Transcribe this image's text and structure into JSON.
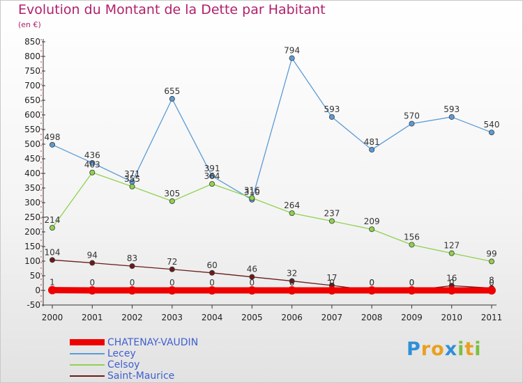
{
  "title": "Evolution du Montant de la Dette par Habitant",
  "subtitle": "(en €)",
  "logo": {
    "letters": [
      "P",
      "r",
      "o",
      "x",
      "i",
      "t",
      "i"
    ],
    "colors": [
      "#2f8fd8",
      "#e8a020",
      "#e8a020",
      "#2f8fd8",
      "#7ac043",
      "#e8a020",
      "#7ac043"
    ]
  },
  "chart_data": {
    "type": "line",
    "title": "Evolution du Montant de la Dette par Habitant",
    "ylabel": "(en €)",
    "xlabel": "",
    "x": [
      "2000",
      "2001",
      "2002",
      "2003",
      "2004",
      "2005",
      "2006",
      "2007",
      "2008",
      "2009",
      "2010",
      "2011"
    ],
    "ylim": [
      -50,
      850
    ],
    "yticks": [
      -50,
      0,
      50,
      100,
      150,
      200,
      250,
      300,
      350,
      400,
      450,
      500,
      550,
      600,
      650,
      700,
      750,
      800,
      850
    ],
    "grid": false,
    "legend_position": "bottom-left",
    "series": [
      {
        "name": "CHATENAY-VAUDIN",
        "color": "#ee0000",
        "values": [
          1,
          0,
          0,
          0,
          0,
          0,
          0,
          0,
          0,
          0,
          0,
          0
        ],
        "labels": [
          "1",
          "0",
          "0",
          "0",
          "0",
          "0",
          "0",
          "0",
          "0",
          "0",
          "0",
          "0"
        ]
      },
      {
        "name": "Lecey",
        "color": "#5b9bd5",
        "values": [
          498,
          436,
          371,
          655,
          391,
          310,
          794,
          593,
          481,
          570,
          593,
          540
        ],
        "labels": [
          "498",
          "436",
          "371",
          "655",
          "391",
          "310",
          "794",
          "593",
          "481",
          "570",
          "593",
          "540"
        ]
      },
      {
        "name": "Celsoy",
        "color": "#8fd14f",
        "values": [
          214,
          403,
          355,
          305,
          364,
          316,
          264,
          237,
          209,
          156,
          127,
          99
        ],
        "labels": [
          "214",
          "403",
          "355",
          "305",
          "364",
          "316",
          "264",
          "237",
          "209",
          "156",
          "127",
          "99"
        ]
      },
      {
        "name": "Saint-Maurice",
        "color": "#6b1a1a",
        "values": [
          104,
          94,
          83,
          72,
          60,
          46,
          32,
          17,
          0,
          0,
          16,
          8
        ],
        "labels": [
          "104",
          "94",
          "83",
          "72",
          "60",
          "46",
          "32",
          "17",
          "0",
          "0",
          "16",
          "8"
        ]
      }
    ]
  }
}
